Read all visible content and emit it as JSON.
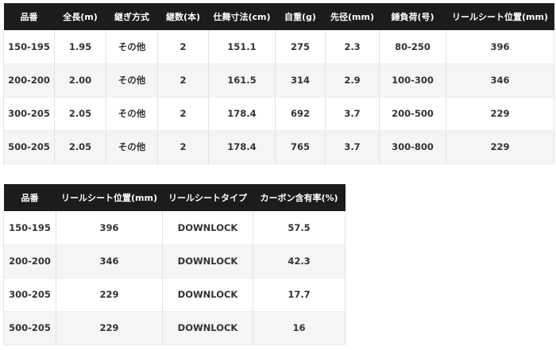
{
  "table1": {
    "headers": [
      "品番",
      "全長(m)",
      "継ぎ方式",
      "継数(本)",
      "仕舞寸法(cm)",
      "自重(g)",
      "先径(mm)",
      "錘負荷(号)",
      "リールシート位置(mm)"
    ],
    "rows": [
      [
        "150-195",
        "1.95",
        "その他",
        "2",
        "151.1",
        "275",
        "2.3",
        "80-250",
        "396"
      ],
      [
        "200-200",
        "2.00",
        "その他",
        "2",
        "161.5",
        "314",
        "2.9",
        "100-300",
        "346"
      ],
      [
        "300-205",
        "2.05",
        "その他",
        "2",
        "178.4",
        "692",
        "3.7",
        "200-500",
        "229"
      ],
      [
        "500-205",
        "2.05",
        "その他",
        "2",
        "178.4",
        "765",
        "3.7",
        "300-800",
        "229"
      ]
    ]
  },
  "table2": {
    "headers": [
      "品番",
      "リールシート位置(mm)",
      "リールシートタイプ",
      "カーボン含有率(%)"
    ],
    "rows": [
      [
        "150-195",
        "396",
        "DOWNLOCK",
        "57.5"
      ],
      [
        "200-200",
        "346",
        "DOWNLOCK",
        "42.3"
      ],
      [
        "300-205",
        "229",
        "DOWNLOCK",
        "17.7"
      ],
      [
        "500-205",
        "229",
        "DOWNLOCK",
        "16"
      ]
    ]
  }
}
